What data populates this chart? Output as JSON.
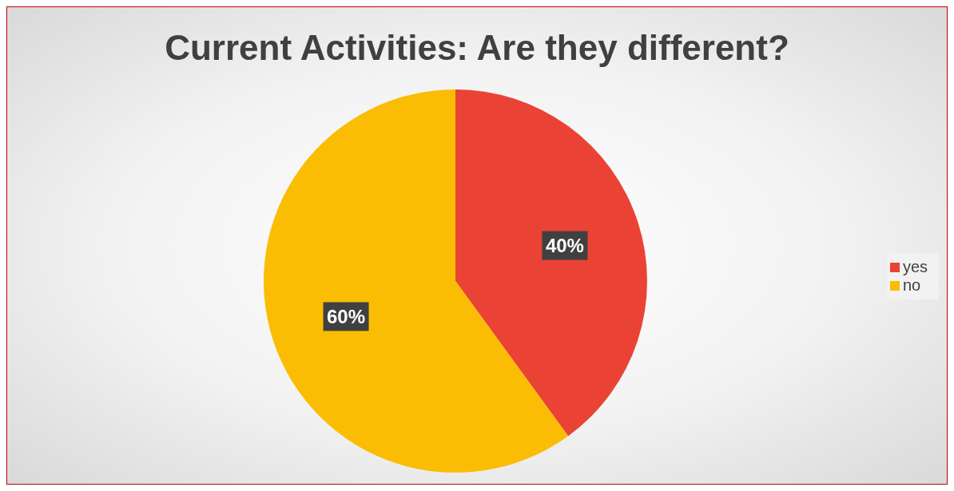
{
  "chart_data": {
    "type": "pie",
    "title": "Current Activities: Are they different?",
    "categories": [
      "yes",
      "no"
    ],
    "values": [
      40,
      60
    ],
    "colors": [
      "#ea4335",
      "#fbbc04"
    ],
    "value_labels": [
      "40%",
      "60%"
    ],
    "legend": "right"
  }
}
